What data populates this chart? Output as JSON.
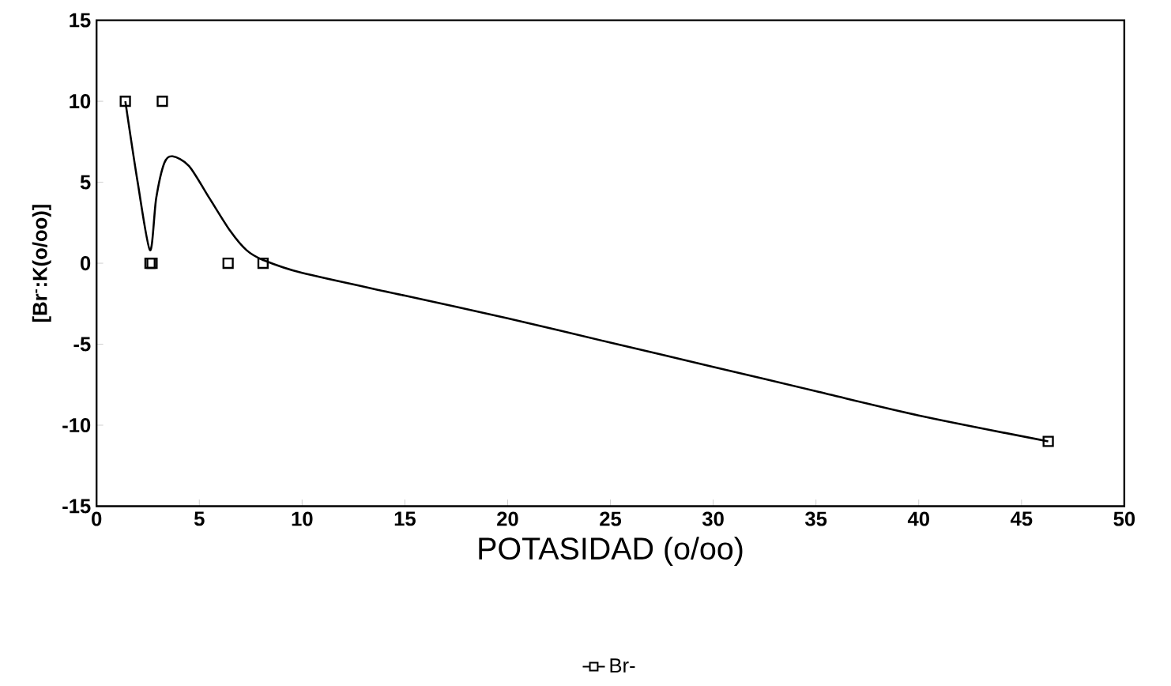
{
  "chart_data": {
    "type": "scatter",
    "xlabel": "POTASIDAD (o/oo)",
    "ylabel": "[Br$^{-}$:K(o/oo)]",
    "xlim": [
      0,
      50
    ],
    "ylim": [
      -15,
      15
    ],
    "xticks": [
      0,
      5,
      10,
      15,
      20,
      25,
      30,
      35,
      40,
      45,
      50
    ],
    "yticks": [
      -15,
      -10,
      -5,
      0,
      5,
      10,
      15
    ],
    "grid": false,
    "legend": "bottom",
    "marker": "square",
    "series": [
      {
        "name": "Br-",
        "color": "#000000",
        "x": [
          1.4,
          2.6,
          2.7,
          3.2,
          6.4,
          8.1,
          46.3
        ],
        "values": [
          10,
          0,
          0,
          10,
          0,
          0,
          -11
        ]
      },
      {
        "type": "line",
        "color": "#000000",
        "line_style": "solid",
        "marker": "none",
        "x": [
          1.4,
          2.0,
          2.6,
          2.9,
          3.3,
          3.7,
          4.5,
          5.5,
          6.5,
          7.3,
          8.1,
          10,
          15,
          20,
          25,
          30,
          35,
          40,
          46.3
        ],
        "values": [
          10,
          5,
          0.8,
          4,
          6.2,
          6.6,
          6,
          4,
          2,
          0.8,
          0.2,
          -0.6,
          -2.0,
          -3.4,
          -4.9,
          -6.4,
          -7.9,
          -9.4,
          -11
        ]
      }
    ]
  }
}
